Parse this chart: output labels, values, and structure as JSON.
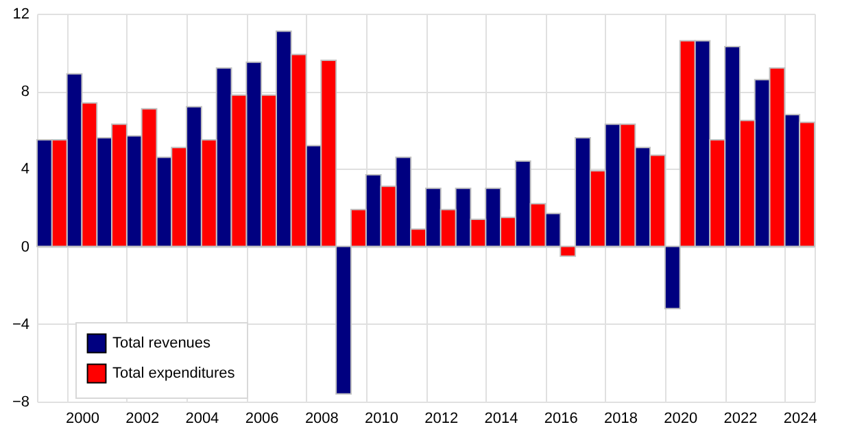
{
  "chart_data": {
    "type": "bar",
    "categories": [
      null,
      "2000",
      null,
      "2002",
      null,
      "2004",
      null,
      "2006",
      null,
      "2008",
      null,
      "2010",
      null,
      "2012",
      null,
      "2014",
      null,
      "2016",
      null,
      "2018",
      null,
      "2020",
      null,
      "2022",
      null,
      "2024"
    ],
    "series": [
      {
        "name": "Total revenues",
        "color": "#000080",
        "values": [
          5.5,
          8.9,
          5.6,
          5.7,
          4.6,
          7.2,
          9.2,
          9.5,
          11.1,
          5.2,
          -7.6,
          3.7,
          4.6,
          3.0,
          3.0,
          3.0,
          4.4,
          1.7,
          5.6,
          6.3,
          5.1,
          -3.2,
          10.6,
          10.3,
          8.6,
          6.8
        ]
      },
      {
        "name": "Total expenditures",
        "color": "#ff0000",
        "values": [
          5.5,
          7.4,
          6.3,
          7.1,
          5.1,
          5.5,
          7.8,
          7.8,
          9.9,
          9.6,
          1.9,
          3.1,
          0.9,
          1.9,
          1.4,
          1.5,
          2.2,
          -0.5,
          3.9,
          6.3,
          4.7,
          10.6,
          5.5,
          6.5,
          9.2,
          6.4
        ]
      }
    ],
    "ylim": [
      -8,
      12
    ],
    "yticks": [
      -8,
      -4,
      0,
      4,
      8,
      12
    ],
    "grid": true,
    "legend": "bottom left"
  }
}
